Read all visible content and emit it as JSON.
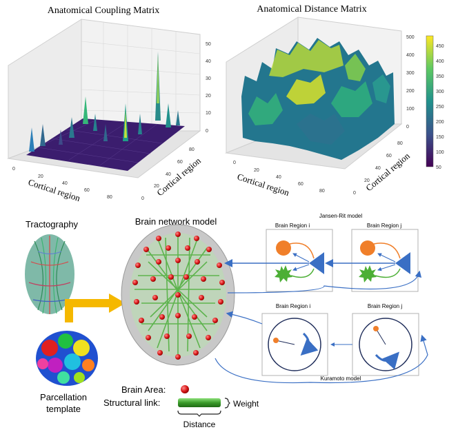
{
  "top_panels": {
    "coupling": {
      "title": "Anatomical Coupling  Matrix",
      "x_axis_label": "Cortical region",
      "y_axis_label": "Cortical region",
      "x_ticks": [
        "0",
        "20",
        "40",
        "60",
        "80"
      ],
      "y_ticks": [
        "0",
        "20",
        "40",
        "60",
        "80"
      ],
      "z_ticks": [
        "0",
        "10",
        "20",
        "30",
        "40",
        "50"
      ]
    },
    "distance": {
      "title": "Anatomical Distance Matrix",
      "x_axis_label": "Cortical region",
      "y_axis_label": "Cortical region",
      "x_ticks": [
        "0",
        "20",
        "40",
        "60",
        "80"
      ],
      "y_ticks": [
        "0",
        "20",
        "40",
        "60",
        "80"
      ],
      "z_ticks": [
        "0",
        "100",
        "200",
        "300",
        "400",
        "500"
      ],
      "colorbar_ticks": [
        "50",
        "100",
        "150",
        "200",
        "250",
        "300",
        "350",
        "400",
        "450"
      ]
    }
  },
  "bottom": {
    "tractography_label": "Tractography",
    "network_label": "Brain network model",
    "parcellation_label_1": "Parcellation",
    "parcellation_label_2": "template",
    "legend": {
      "area_label": "Brain Area:",
      "link_label": "Structural link:",
      "weight_label": "Weight",
      "distance_label": "Distance"
    },
    "jansen_rit": {
      "title": "Jansen-Rit model",
      "region_i": "Brain Region i",
      "region_j": "Brain Region j"
    },
    "kuramoto": {
      "title": "Kuramoto model",
      "region_i": "Brain Region i",
      "region_j": "Brain Region j"
    }
  },
  "colors": {
    "viridis_dark": "#3b0f70",
    "viridis_teal": "#21918c",
    "viridis_yellow": "#fde725",
    "node_red": "#e02020",
    "link_green": "#4cae3a",
    "arrow_blue": "#3a6fc4",
    "orange": "#f07f2a",
    "yellow_arrow": "#f5b800"
  }
}
